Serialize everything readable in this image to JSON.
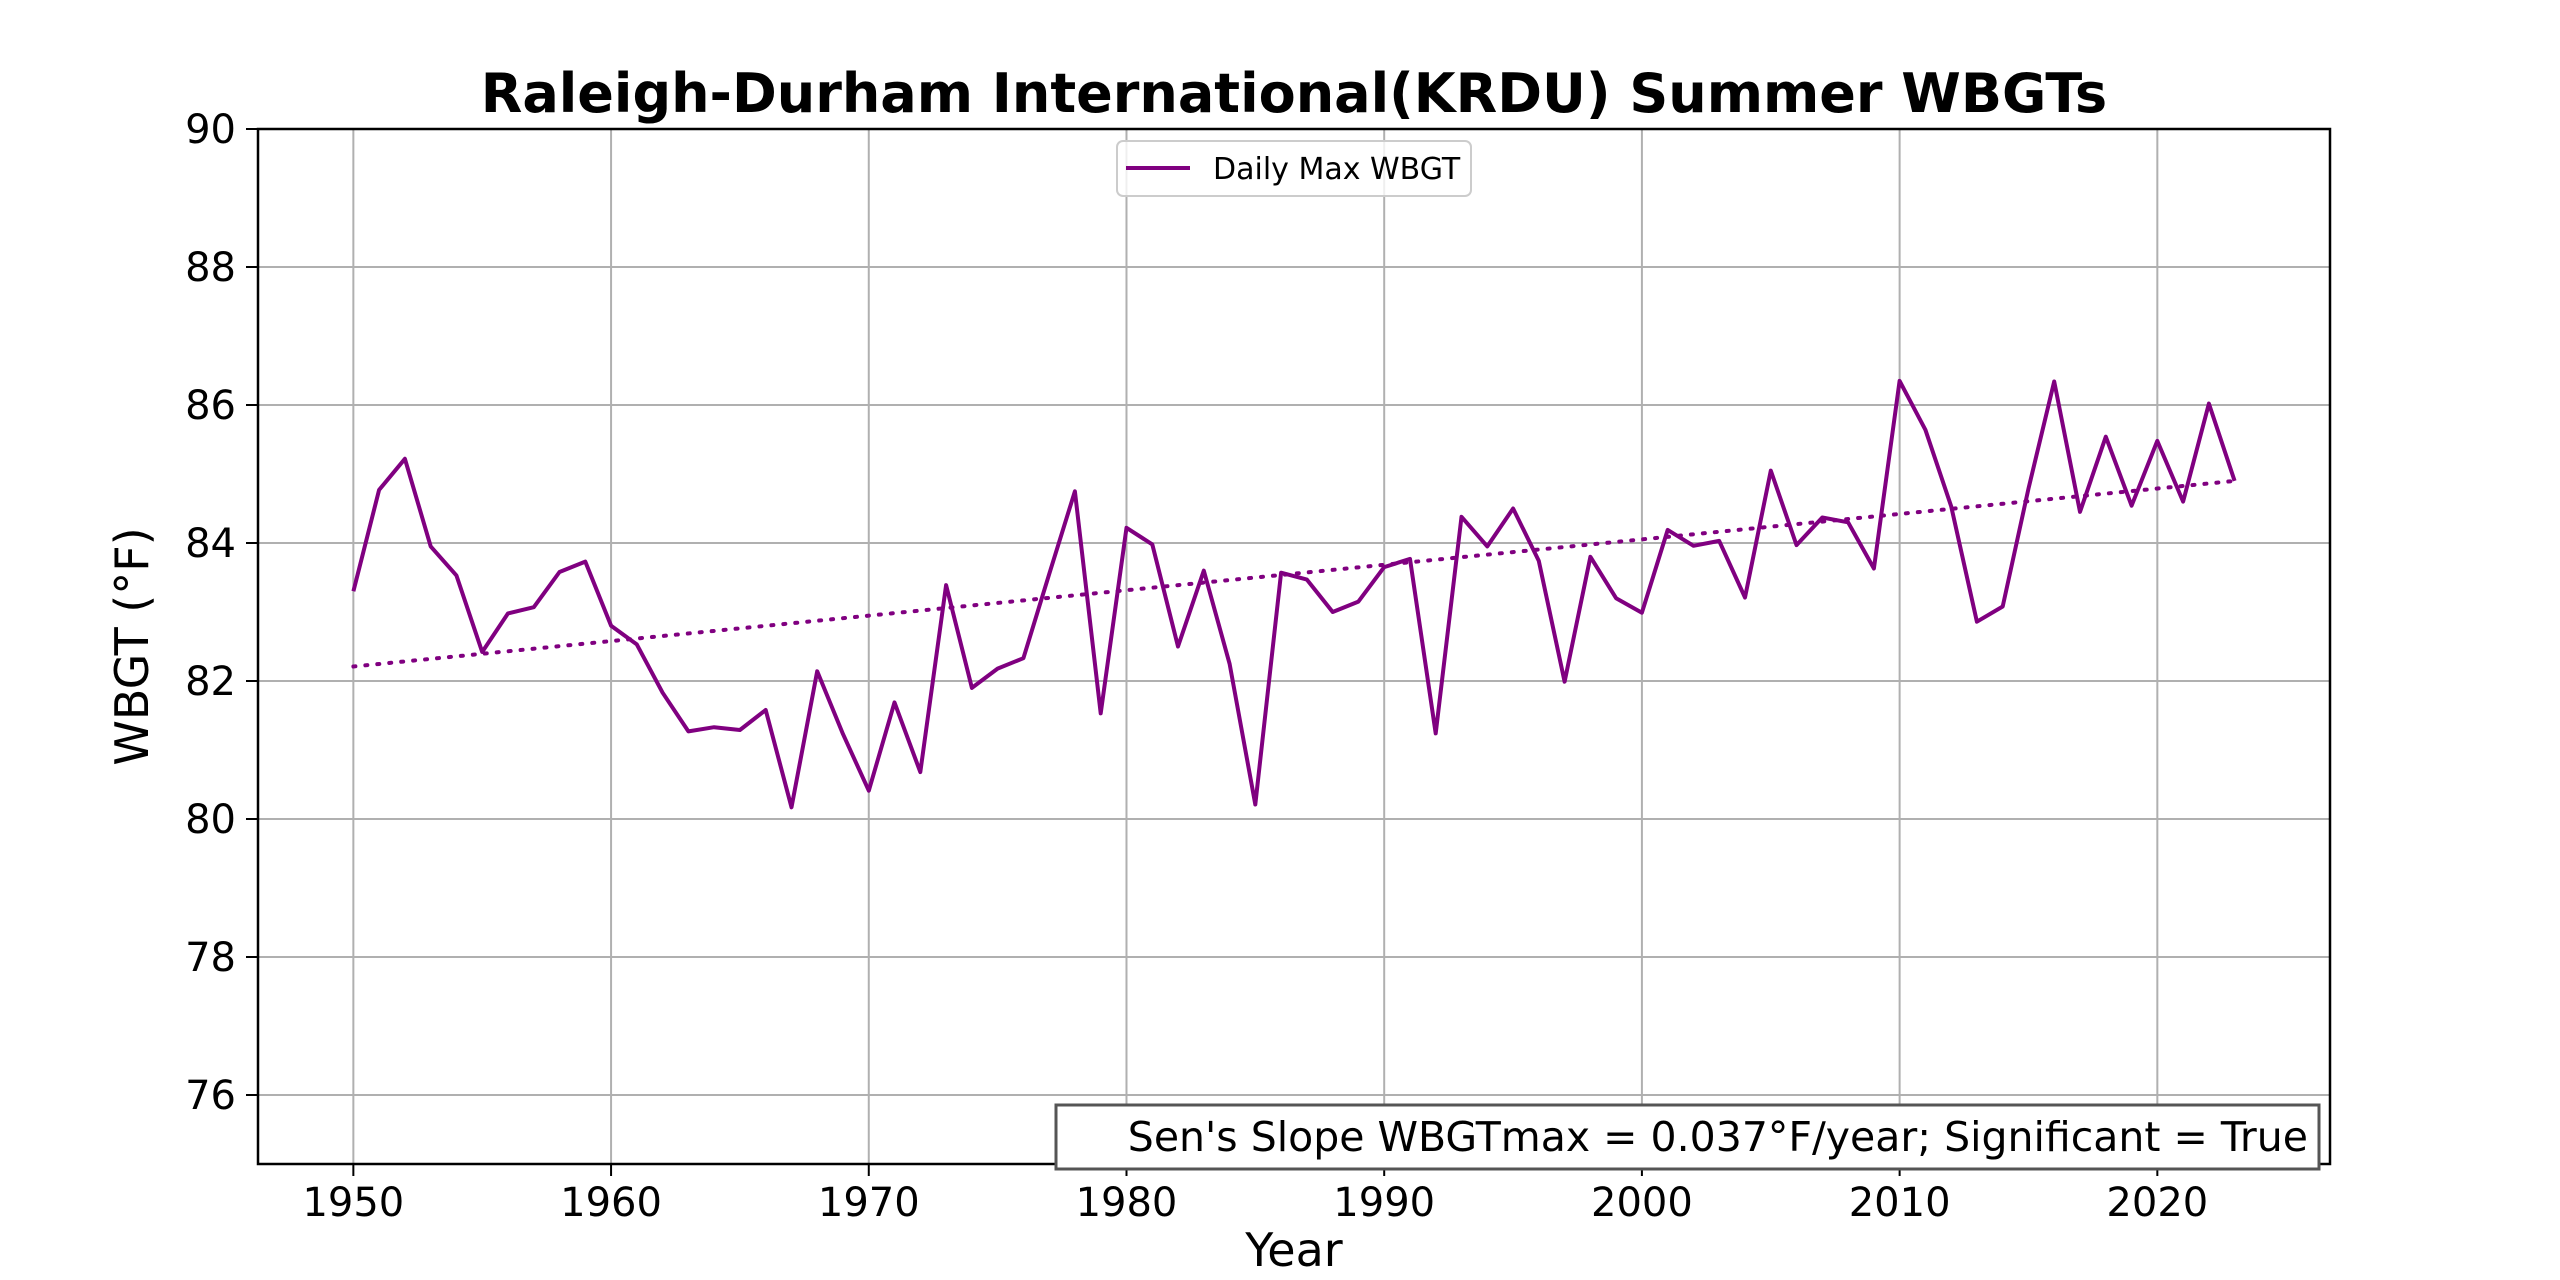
{
  "chart_data": {
    "type": "line",
    "title": "Raleigh-Durham International(KRDU) Summer WBGTs",
    "xlabel": "Year",
    "ylabel": "WBGT (°F)",
    "xlim": [
      1946.3,
      2026.7
    ],
    "ylim": [
      75,
      90
    ],
    "xticks": [
      1950,
      1960,
      1970,
      1980,
      1990,
      2000,
      2010,
      2020
    ],
    "yticks": [
      76,
      78,
      80,
      82,
      84,
      86,
      88,
      90
    ],
    "grid": true,
    "legend": {
      "placement": "upper center",
      "entries": [
        "Daily Max WBGT"
      ]
    },
    "series": [
      {
        "name": "Daily Max WBGT",
        "color": "#800080",
        "style": "solid",
        "x": [
          1950,
          1951,
          1952,
          1953,
          1954,
          1955,
          1956,
          1957,
          1958,
          1959,
          1960,
          1961,
          1962,
          1963,
          1964,
          1965,
          1966,
          1967,
          1968,
          1969,
          1970,
          1971,
          1972,
          1973,
          1974,
          1975,
          1976,
          1977,
          1978,
          1979,
          1980,
          1981,
          1982,
          1983,
          1984,
          1985,
          1986,
          1987,
          1988,
          1989,
          1990,
          1991,
          1992,
          1993,
          1994,
          1995,
          1996,
          1997,
          1998,
          1999,
          2000,
          2001,
          2002,
          2003,
          2004,
          2005,
          2006,
          2007,
          2008,
          2009,
          2010,
          2011,
          2012,
          2013,
          2014,
          2015,
          2016,
          2017,
          2018,
          2019,
          2020,
          2021,
          2022,
          2023
        ],
        "values": [
          83.3,
          84.77,
          85.22,
          83.95,
          83.53,
          82.42,
          82.98,
          83.07,
          83.58,
          83.73,
          82.8,
          82.53,
          81.83,
          81.27,
          81.33,
          81.29,
          81.58,
          80.17,
          82.14,
          81.23,
          80.41,
          81.69,
          80.68,
          83.39,
          81.9,
          82.18,
          82.33,
          83.55,
          84.75,
          81.53,
          84.22,
          83.98,
          82.5,
          83.6,
          82.25,
          80.21,
          83.57,
          83.47,
          83.0,
          83.15,
          83.65,
          83.77,
          81.24,
          84.38,
          83.95,
          84.5,
          83.74,
          81.99,
          83.8,
          83.2,
          82.99,
          84.19,
          83.96,
          84.03,
          83.21,
          85.05,
          83.97,
          84.37,
          84.3,
          83.63,
          86.35,
          85.64,
          84.53,
          82.86,
          83.08,
          84.79,
          86.34,
          84.45,
          85.54,
          84.54,
          85.48,
          84.6,
          86.02,
          84.9
        ]
      },
      {
        "name": "",
        "color": "#800080",
        "style": "dotted",
        "x": [
          1950,
          2023
        ],
        "values": [
          82.21,
          84.9
        ]
      }
    ],
    "annotation": "Sen's Slope WBGTmax = 0.037°F/year; Significant = True",
    "annotation_placement": "lower right"
  }
}
